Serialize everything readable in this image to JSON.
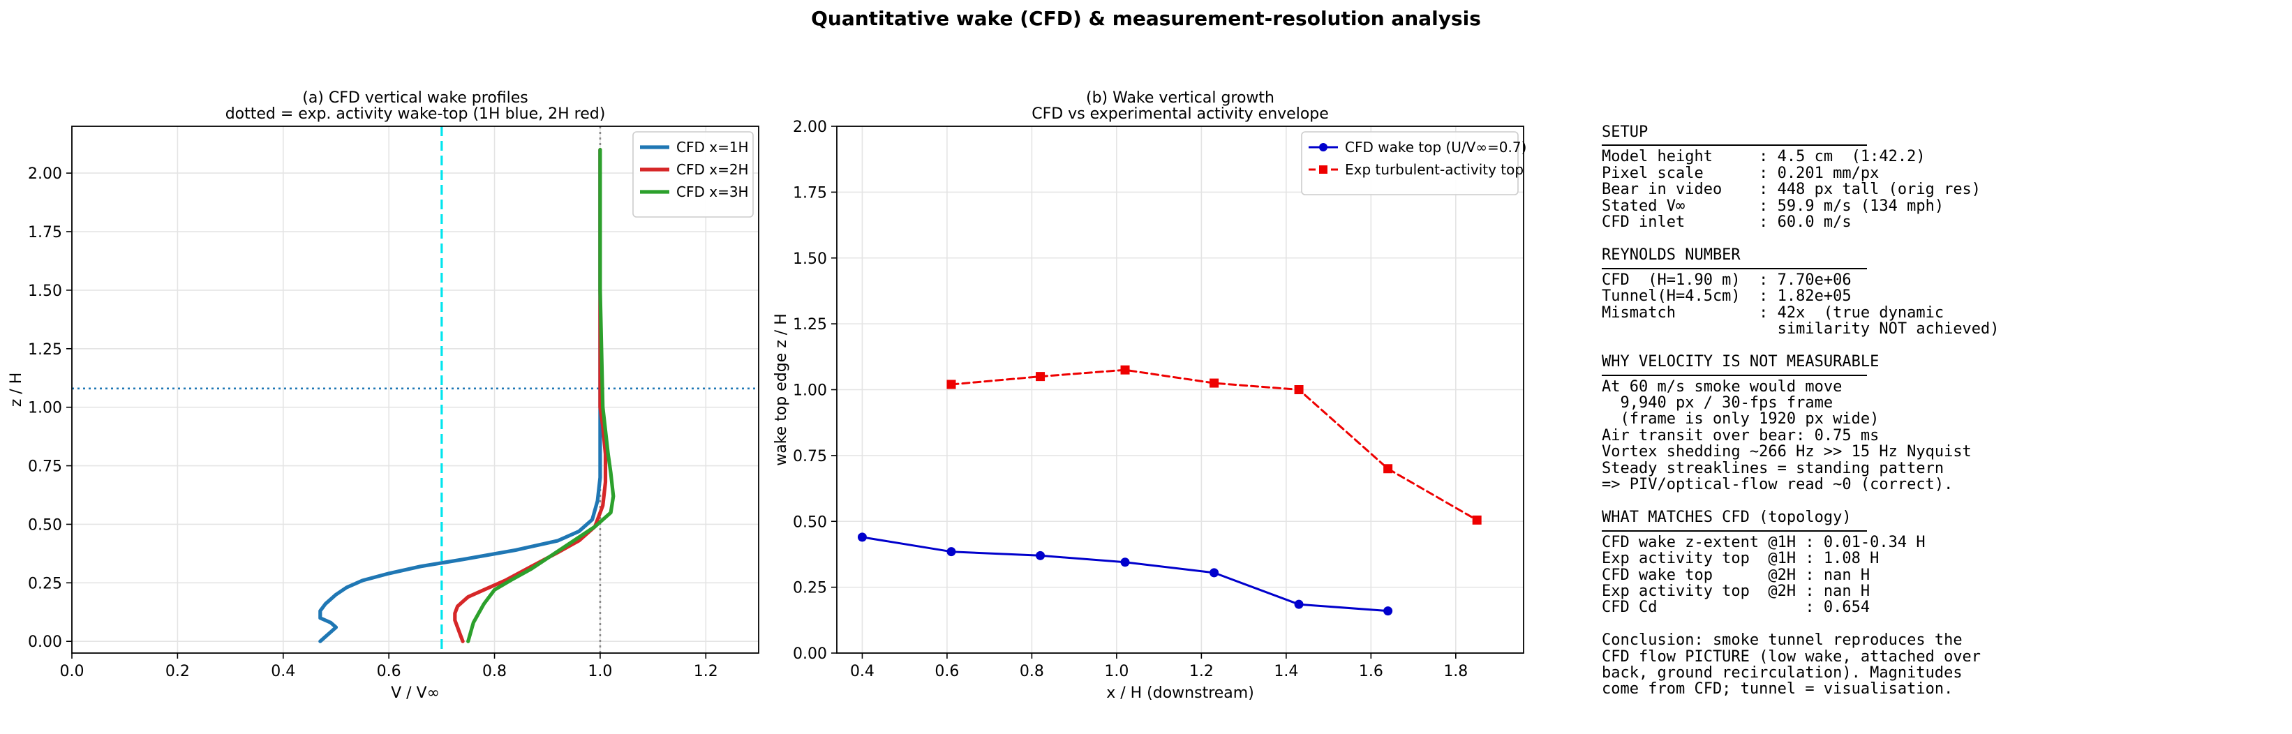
{
  "suptitle": "Quantitative wake (CFD) & measurement-resolution analysis",
  "chart_data": [
    {
      "type": "line",
      "title": "(a) CFD vertical wake profiles",
      "subtitle": "dotted = exp. activity wake-top (1H blue, 2H red)",
      "xlabel": "V / V∞",
      "ylabel": "z / H",
      "xlim": [
        0.0,
        1.3
      ],
      "ylim": [
        -0.05,
        2.2
      ],
      "xticks": [
        "0.0",
        "0.2",
        "0.4",
        "0.6",
        "0.8",
        "1.0",
        "1.2"
      ],
      "yticks": [
        "0.00",
        "0.25",
        "0.50",
        "0.75",
        "1.00",
        "1.25",
        "1.50",
        "1.75",
        "2.00"
      ],
      "xtick_values": [
        0.0,
        0.2,
        0.4,
        0.6,
        0.8,
        1.0,
        1.2
      ],
      "ytick_values": [
        0.0,
        0.25,
        0.5,
        0.75,
        1.0,
        1.25,
        1.5,
        1.75,
        2.0
      ],
      "grid": true,
      "legend_position": "top-right",
      "reference_lines": [
        {
          "orientation": "vertical",
          "value": 0.7,
          "color": "#00e5ee",
          "style": "dashed"
        },
        {
          "orientation": "vertical",
          "value": 1.0,
          "color": "#888888",
          "style": "dotted"
        },
        {
          "orientation": "horizontal",
          "value": 1.08,
          "color": "#1f77b4",
          "style": "dotted"
        }
      ],
      "series": [
        {
          "name": "CFD x=1H",
          "color": "#1f77b4",
          "points": [
            [
              0.47,
              0.0
            ],
            [
              0.48,
              0.02
            ],
            [
              0.49,
              0.04
            ],
            [
              0.5,
              0.06
            ],
            [
              0.49,
              0.08
            ],
            [
              0.47,
              0.1
            ],
            [
              0.47,
              0.13
            ],
            [
              0.48,
              0.16
            ],
            [
              0.5,
              0.2
            ],
            [
              0.52,
              0.23
            ],
            [
              0.55,
              0.26
            ],
            [
              0.6,
              0.29
            ],
            [
              0.66,
              0.32
            ],
            [
              0.74,
              0.35
            ],
            [
              0.84,
              0.39
            ],
            [
              0.92,
              0.43
            ],
            [
              0.96,
              0.47
            ],
            [
              0.985,
              0.52
            ],
            [
              0.995,
              0.6
            ],
            [
              1.0,
              0.7
            ],
            [
              1.0,
              0.8
            ],
            [
              1.0,
              1.0
            ],
            [
              1.0,
              1.5
            ],
            [
              1.0,
              2.1
            ]
          ]
        },
        {
          "name": "CFD x=2H",
          "color": "#d62728",
          "points": [
            [
              0.74,
              0.0
            ],
            [
              0.735,
              0.03
            ],
            [
              0.73,
              0.06
            ],
            [
              0.725,
              0.09
            ],
            [
              0.725,
              0.12
            ],
            [
              0.73,
              0.15
            ],
            [
              0.74,
              0.17
            ],
            [
              0.75,
              0.19
            ],
            [
              0.78,
              0.22
            ],
            [
              0.82,
              0.26
            ],
            [
              0.87,
              0.32
            ],
            [
              0.92,
              0.38
            ],
            [
              0.96,
              0.43
            ],
            [
              0.99,
              0.49
            ],
            [
              1.005,
              0.58
            ],
            [
              1.01,
              0.68
            ],
            [
              1.01,
              0.8
            ],
            [
              1.005,
              0.92
            ],
            [
              1.0,
              1.0
            ],
            [
              1.0,
              1.5
            ],
            [
              1.0,
              2.1
            ]
          ]
        },
        {
          "name": "CFD x=3H",
          "color": "#2ca02c",
          "points": [
            [
              0.75,
              0.0
            ],
            [
              0.755,
              0.04
            ],
            [
              0.76,
              0.08
            ],
            [
              0.77,
              0.12
            ],
            [
              0.78,
              0.16
            ],
            [
              0.8,
              0.22
            ],
            [
              0.83,
              0.26
            ],
            [
              0.87,
              0.31
            ],
            [
              0.91,
              0.37
            ],
            [
              0.95,
              0.43
            ],
            [
              0.99,
              0.49
            ],
            [
              1.02,
              0.55
            ],
            [
              1.025,
              0.62
            ],
            [
              1.02,
              0.72
            ],
            [
              1.015,
              0.8
            ],
            [
              1.01,
              0.9
            ],
            [
              1.005,
              1.0
            ],
            [
              1.0,
              1.5
            ],
            [
              1.0,
              2.1
            ]
          ]
        }
      ]
    },
    {
      "type": "line",
      "title": "(b) Wake vertical growth",
      "subtitle": "CFD vs experimental activity envelope",
      "xlabel": "x / H  (downstream)",
      "ylabel": "wake top edge  z / H",
      "xlim": [
        0.34,
        1.96
      ],
      "ylim": [
        0.0,
        2.0
      ],
      "xticks": [
        "0.4",
        "0.6",
        "0.8",
        "1.0",
        "1.2",
        "1.4",
        "1.6",
        "1.8"
      ],
      "yticks": [
        "0.00",
        "0.25",
        "0.50",
        "0.75",
        "1.00",
        "1.25",
        "1.50",
        "1.75",
        "2.00"
      ],
      "xtick_values": [
        0.4,
        0.6,
        0.8,
        1.0,
        1.2,
        1.4,
        1.6,
        1.8
      ],
      "ytick_values": [
        0.0,
        0.25,
        0.5,
        0.75,
        1.0,
        1.25,
        1.5,
        1.75,
        2.0
      ],
      "grid": true,
      "legend_position": "top-right",
      "series": [
        {
          "name": "CFD wake top (U/V∞=0.7)",
          "color": "#0000cc",
          "style": "solid",
          "marker": "circle",
          "x": [
            0.4,
            0.61,
            0.82,
            1.02,
            1.23,
            1.43,
            1.64
          ],
          "y": [
            0.44,
            0.385,
            0.37,
            0.345,
            0.305,
            0.185,
            0.16
          ]
        },
        {
          "name": "Exp turbulent-activity top",
          "color": "#ee0000",
          "style": "dashed",
          "marker": "square",
          "x": [
            0.61,
            0.82,
            1.02,
            1.23,
            1.43,
            1.64,
            1.85
          ],
          "y": [
            1.02,
            1.05,
            1.075,
            1.025,
            1.0,
            0.7,
            0.505
          ]
        }
      ]
    }
  ],
  "info_panel": [
    {
      "heading": "SETUP",
      "lines": [
        "Model height     : 4.5 cm  (1:42.2)",
        "Pixel scale      : 0.201 mm/px",
        "Bear in video    : 448 px tall (orig res)",
        "Stated V∞        : 59.9 m/s (134 mph)",
        "CFD inlet        : 60.0 m/s"
      ]
    },
    {
      "heading": "REYNOLDS NUMBER",
      "lines": [
        "CFD  (H=1.90 m)  : 7.70e+06",
        "Tunnel(H=4.5cm)  : 1.82e+05",
        "Mismatch         : 42x  (true dynamic",
        "                   similarity NOT achieved)"
      ]
    },
    {
      "heading": "WHY VELOCITY IS NOT MEASURABLE",
      "lines": [
        "At 60 m/s smoke would move",
        "  9,940 px / 30-fps frame",
        "  (frame is only 1920 px wide)",
        "Air transit over bear: 0.75 ms",
        "Vortex shedding ~266 Hz >> 15 Hz Nyquist",
        "Steady streaklines = standing pattern",
        "=> PIV/optical-flow read ~0 (correct)."
      ]
    },
    {
      "heading": "WHAT MATCHES CFD (topology)",
      "lines": [
        "CFD wake z-extent @1H : 0.01-0.34 H",
        "Exp activity top  @1H : 1.08 H",
        "CFD wake top      @2H : nan H",
        "Exp activity top  @2H : nan H",
        "CFD Cd                : 0.654",
        "",
        "Conclusion: smoke tunnel reproduces the",
        "CFD flow PICTURE (low wake, attached over",
        "back, ground recirculation). Magnitudes",
        "come from CFD; tunnel = visualisation."
      ]
    }
  ]
}
